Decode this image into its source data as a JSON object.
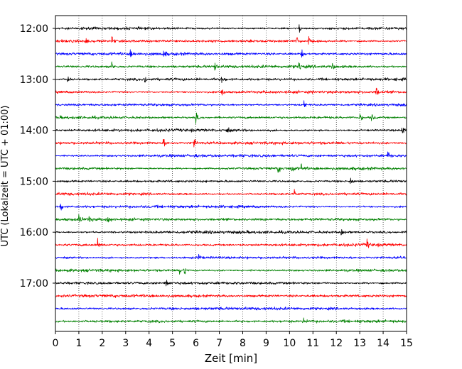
{
  "chart_data": {
    "type": "line",
    "title": "",
    "xlabel": "Zeit  [min]",
    "ylabel": "UTC (Lokalzeit = UTC + 01:00)",
    "xlim": [
      0,
      15
    ],
    "x_ticks": [
      "0",
      "1",
      "2",
      "3",
      "4",
      "5",
      "6",
      "7",
      "8",
      "9",
      "10",
      "11",
      "12",
      "13",
      "14",
      "15"
    ],
    "y_ticks": [
      "12:00",
      "13:00",
      "14:00",
      "15:00",
      "16:00",
      "17:00"
    ],
    "grid": "vertical dotted at each minute",
    "trace_interval_minutes": 15,
    "colors": [
      "#000000",
      "#ff0000",
      "#0000ff",
      "#008000"
    ],
    "traces": [
      {
        "start": "12:00",
        "color": "#000000",
        "events": [
          10.4
        ]
      },
      {
        "start": "12:15",
        "color": "#ff0000",
        "events": [
          1.3,
          2.4,
          10.3,
          10.8
        ]
      },
      {
        "start": "12:30",
        "color": "#0000ff",
        "events": [
          3.2,
          4.6,
          10.5
        ]
      },
      {
        "start": "12:45",
        "color": "#008000",
        "events": [
          2.4,
          6.8,
          10.4,
          11.8
        ]
      },
      {
        "start": "13:00",
        "color": "#000000",
        "events": [
          0.5,
          3.8,
          7.1
        ]
      },
      {
        "start": "13:15",
        "color": "#ff0000",
        "events": [
          7.1,
          13.7
        ]
      },
      {
        "start": "13:30",
        "color": "#0000ff",
        "events": [
          10.6
        ]
      },
      {
        "start": "13:45",
        "color": "#008000",
        "events": [
          6.0,
          13.0,
          13.5
        ]
      },
      {
        "start": "14:00",
        "color": "#000000",
        "events": [
          7.3,
          14.8
        ]
      },
      {
        "start": "14:15",
        "color": "#ff0000",
        "events": [
          4.6,
          5.9
        ]
      },
      {
        "start": "14:30",
        "color": "#0000ff",
        "events": [
          14.2
        ]
      },
      {
        "start": "14:45",
        "color": "#008000",
        "events": [
          9.5,
          10.1,
          10.5
        ]
      },
      {
        "start": "15:00",
        "color": "#000000",
        "events": [
          12.6
        ]
      },
      {
        "start": "15:15",
        "color": "#ff0000",
        "events": [
          10.2
        ]
      },
      {
        "start": "15:30",
        "color": "#0000ff",
        "events": [
          0.2
        ]
      },
      {
        "start": "15:45",
        "color": "#008000",
        "events": [
          1.0,
          1.4,
          2.2
        ]
      },
      {
        "start": "16:00",
        "color": "#000000",
        "events": [
          12.2
        ]
      },
      {
        "start": "16:15",
        "color": "#ff0000",
        "events": [
          1.8,
          13.3
        ]
      },
      {
        "start": "16:30",
        "color": "#0000ff",
        "events": [
          6.1
        ]
      },
      {
        "start": "16:45",
        "color": "#008000",
        "events": [
          5.3,
          5.5
        ]
      },
      {
        "start": "17:00",
        "color": "#000000",
        "events": [
          4.7
        ]
      },
      {
        "start": "17:15",
        "color": "#ff0000",
        "events": []
      },
      {
        "start": "17:30",
        "color": "#0000ff",
        "events": []
      },
      {
        "start": "17:45",
        "color": "#008000",
        "events": [
          10.6
        ]
      }
    ]
  }
}
